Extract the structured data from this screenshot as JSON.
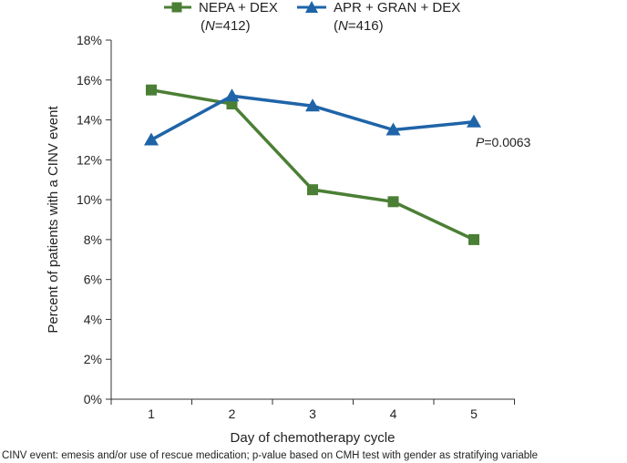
{
  "chart_data": {
    "type": "line",
    "categories": [
      "1",
      "2",
      "3",
      "4",
      "5"
    ],
    "x": [
      1,
      2,
      3,
      4,
      5
    ],
    "series": [
      {
        "name": "NEPA + DEX",
        "n_label": "(N=412)",
        "n_prefix": "(",
        "n_var": "N",
        "n_value": "=412)",
        "marker": "square",
        "color": "#4b7f35",
        "values": [
          15.5,
          14.8,
          10.5,
          9.9,
          8.0
        ]
      },
      {
        "name": "APR + GRAN + DEX",
        "n_label": "(N=416)",
        "n_prefix": "(",
        "n_var": "N",
        "n_value": "=416)",
        "marker": "triangle",
        "color": "#1f64a8",
        "values": [
          13.0,
          15.2,
          14.7,
          13.5,
          13.9
        ]
      }
    ],
    "xlabel": "Day of chemotherapy cycle",
    "ylabel": "Percent of patients with a CINV event",
    "ylim": [
      0,
      18
    ],
    "yticks": [
      0,
      2,
      4,
      6,
      8,
      10,
      12,
      14,
      16,
      18
    ],
    "ytick_labels": [
      "0%",
      "2%",
      "4%",
      "6%",
      "8%",
      "10%",
      "12%",
      "14%",
      "16%",
      "18%"
    ],
    "grid": false,
    "legend_position": "top",
    "annotation": {
      "text": "P=0.0063",
      "italic_part": "P",
      "rest": "=0.0063",
      "near_series": "APR + GRAN + DEX",
      "near_x": 5
    },
    "footnote": "CINV event: emesis and/or use of rescue medication; p-value based on CMH test with gender as stratifying variable"
  }
}
